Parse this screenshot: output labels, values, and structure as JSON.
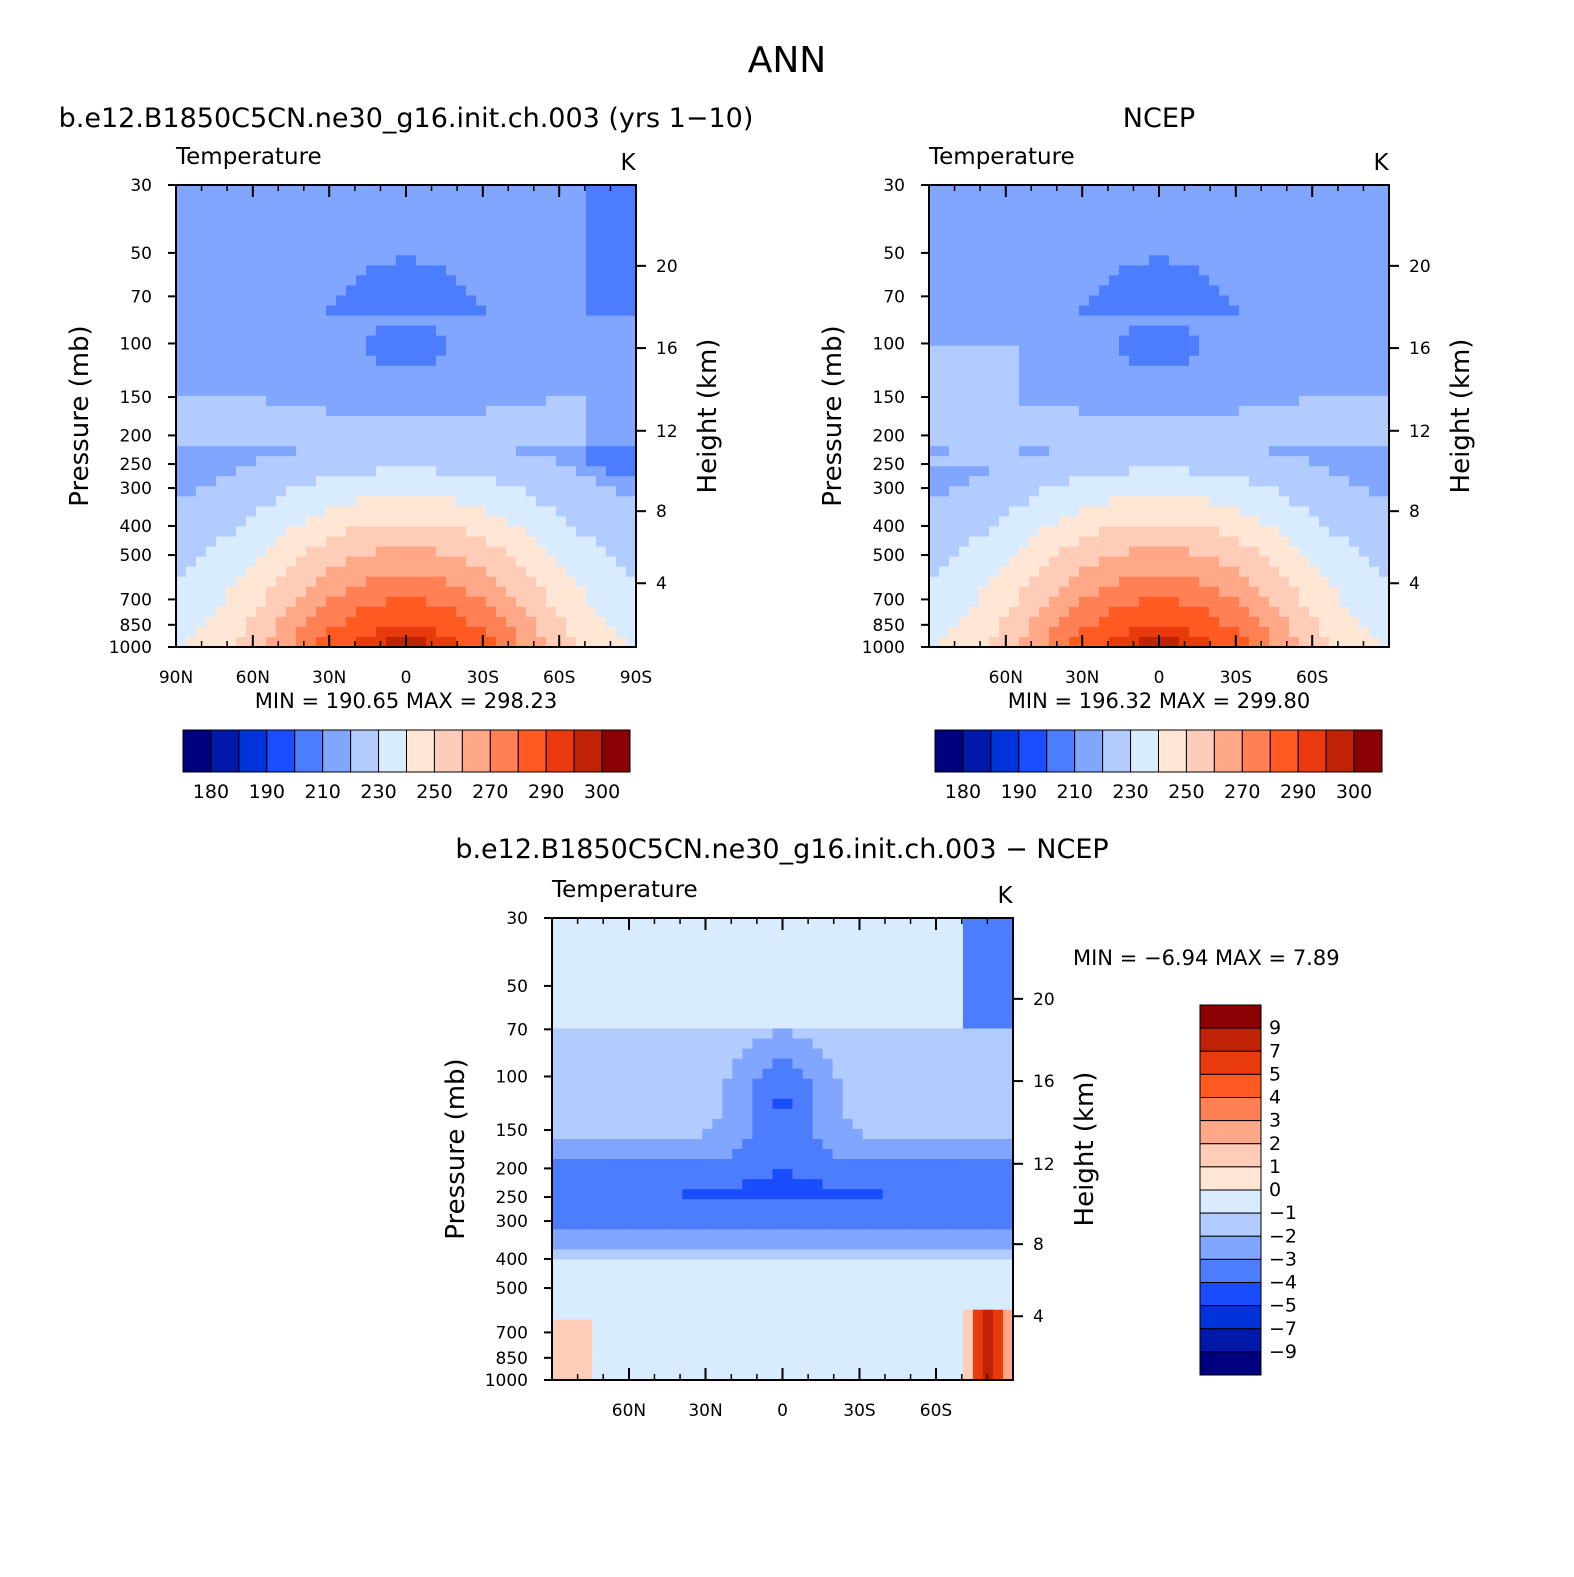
{
  "page_title": "ANN",
  "colors": {
    "main_scale": [
      "#00007f",
      "#0019a8",
      "#0033d9",
      "#1a4dff",
      "#4d7dff",
      "#80a6ff",
      "#b3ccff",
      "#d9ebff",
      "#ffe6d5",
      "#ffccb8",
      "#ffa888",
      "#ff8055",
      "#ff5a22",
      "#e83a0c",
      "#bf2205",
      "#8b0000"
    ],
    "diff_scale": [
      "#00007f",
      "#0019a8",
      "#0033d9",
      "#1a4dff",
      "#4d7dff",
      "#80a6ff",
      "#b3ccff",
      "#d9ebff",
      "#ffe6d5",
      "#ffccb8",
      "#ffa888",
      "#ff8055",
      "#ff5a22",
      "#e83a0c",
      "#bf2205",
      "#8b0000"
    ]
  },
  "chart_data": [
    {
      "type": "heatmap",
      "panel_title": "b.e12.B1850C5CN.ne30_g16.init.ch.003 (yrs 1−10)",
      "subtitle_left": "Temperature",
      "subtitle_right": "K",
      "ylabel": "Pressure (mb)",
      "ylabel_right": "Height (km)",
      "pressure_ticks": [
        "30",
        "50",
        "70",
        "100",
        "150",
        "200",
        "250",
        "300",
        "400",
        "500",
        "700",
        "850",
        "1000"
      ],
      "height_ticks": [
        "20",
        "16",
        "12",
        "8",
        "4"
      ],
      "lat_ticks": [
        "90N",
        "60N",
        "30N",
        "0",
        "30S",
        "60S",
        "90S"
      ],
      "ylim": [
        1000,
        30
      ],
      "min_max_text": "MIN = 190.65  MAX = 298.23",
      "min": 190.65,
      "max": 298.23,
      "colorbar_labels": [
        "180",
        "190",
        "210",
        "230",
        "250",
        "270",
        "290",
        "300"
      ]
    },
    {
      "type": "heatmap",
      "panel_title": "NCEP",
      "subtitle_left": "Temperature",
      "subtitle_right": "K",
      "ylabel": "Pressure (mb)",
      "ylabel_right": "Height (km)",
      "pressure_ticks": [
        "30",
        "50",
        "70",
        "100",
        "150",
        "200",
        "250",
        "300",
        "400",
        "500",
        "700",
        "850",
        "1000"
      ],
      "height_ticks": [
        "20",
        "16",
        "12",
        "8",
        "4"
      ],
      "lat_ticks": [
        "60N",
        "30N",
        "0",
        "30S",
        "60S"
      ],
      "ylim": [
        1000,
        30
      ],
      "min_max_text": "MIN = 196.32  MAX = 299.80",
      "min": 196.32,
      "max": 299.8,
      "colorbar_labels": [
        "180",
        "190",
        "210",
        "230",
        "250",
        "270",
        "290",
        "300"
      ]
    },
    {
      "type": "heatmap",
      "panel_title": "b.e12.B1850C5CN.ne30_g16.init.ch.003 − NCEP",
      "subtitle_left": "Temperature",
      "subtitle_right": "K",
      "ylabel": "Pressure (mb)",
      "ylabel_right": "Height (km)",
      "pressure_ticks": [
        "30",
        "50",
        "70",
        "100",
        "150",
        "200",
        "250",
        "300",
        "400",
        "500",
        "700",
        "850",
        "1000"
      ],
      "height_ticks": [
        "20",
        "16",
        "12",
        "8",
        "4"
      ],
      "lat_ticks": [
        "60N",
        "30N",
        "0",
        "30S",
        "60S"
      ],
      "ylim": [
        1000,
        30
      ],
      "min_max_text": "MIN =  −6.94  MAX =   7.89",
      "min": -6.94,
      "max": 7.89,
      "colorbar_labels": [
        "9",
        "7",
        "5",
        "4",
        "3",
        "2",
        "1",
        "0",
        "−1",
        "−2",
        "−3",
        "−4",
        "−5",
        "−7",
        "−9"
      ]
    }
  ]
}
